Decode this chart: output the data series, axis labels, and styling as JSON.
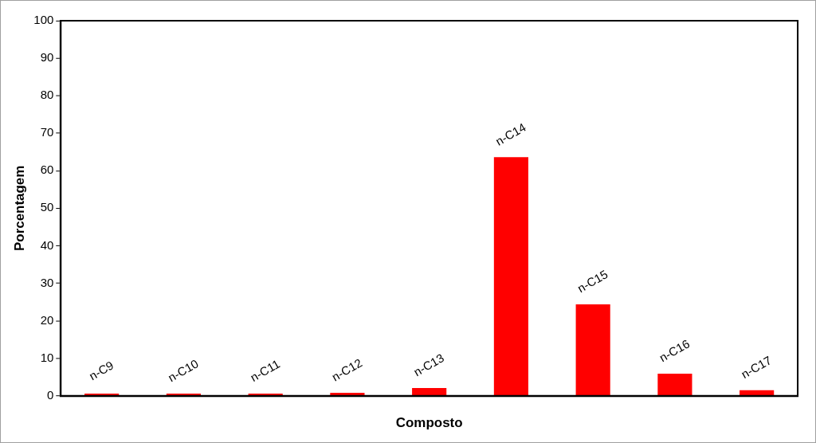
{
  "chart_data": {
    "type": "bar",
    "xlabel": "Composto",
    "ylabel": "Porcentagem",
    "categories": [
      "n-C9",
      "n-C10",
      "n-C11",
      "n-C12",
      "n-C13",
      "n-C14",
      "n-C15",
      "n-C16",
      "n-C17"
    ],
    "values": [
      0.6,
      0.6,
      0.6,
      0.8,
      2.1,
      63.6,
      24.4,
      5.9,
      1.5
    ],
    "color": "#ff0000",
    "ylim": [
      0,
      100
    ],
    "yticks": [
      0,
      10,
      20,
      30,
      40,
      50,
      60,
      70,
      80,
      90,
      100
    ],
    "grid": false,
    "legend": false
  }
}
